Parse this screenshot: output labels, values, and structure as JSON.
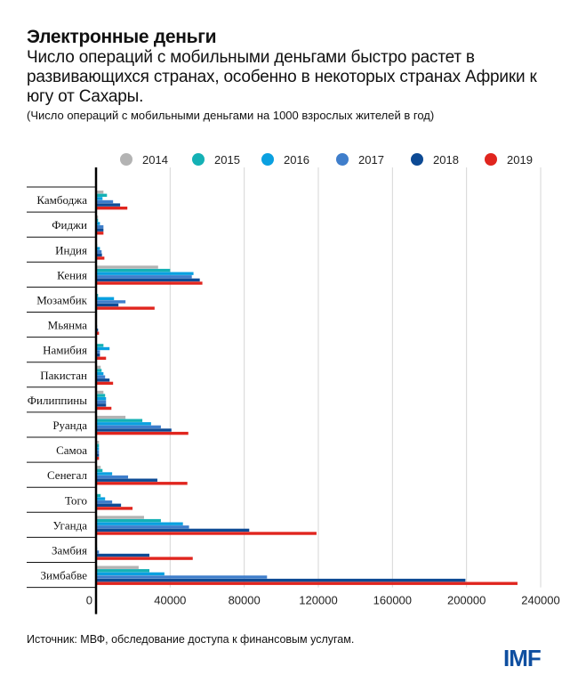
{
  "header": {
    "title": "Электронные деньги",
    "subtitle": "Число операций с мобильными деньгами быстро растет в развивающихся странах, особенно в некоторых странах Африки к югу от Сахары.",
    "note": "(Число операций с мобильными деньгами на 1000 взрослых жителей в год)"
  },
  "footer": {
    "source": "Источник: МВФ, обследование доступа к финансовым услугам.",
    "logo": "IMF"
  },
  "chart_data": {
    "type": "bar",
    "orientation": "horizontal",
    "title": "",
    "xlabel": "",
    "ylabel": "",
    "xlim": [
      0,
      240000
    ],
    "xticks": [
      "0",
      "40000",
      "80000",
      "120000",
      "160000",
      "200000",
      "240000"
    ],
    "grid": true,
    "legend_position": "top",
    "categories": [
      "Камбоджа",
      "Фиджи",
      "Индия",
      "Кения",
      "Мозамбик",
      "Мьянма",
      "Намибия",
      "Пакистан",
      "Филиппины",
      "Руанда",
      "Самоа",
      "Сенегал",
      "Того",
      "Уганда",
      "Замбия",
      "Зимбабве"
    ],
    "series": [
      {
        "name": "2014",
        "color": "#b3b3b3",
        "values": [
          4000,
          1100,
          500,
          33500,
          500,
          0,
          0,
          2500,
          4000,
          15900,
          1600,
          2500,
          0,
          25900,
          0,
          23000
        ]
      },
      {
        "name": "2015",
        "color": "#14b1b5",
        "values": [
          5900,
          1100,
          600,
          40000,
          1100,
          0,
          4000,
          3000,
          4900,
          25000,
          1600,
          3500,
          2500,
          35000,
          500,
          28800
        ]
      },
      {
        "name": "2016",
        "color": "#0aa0e0",
        "values": [
          3500,
          2100,
          2100,
          52600,
          9700,
          300,
          7300,
          4000,
          5400,
          29700,
          1600,
          8700,
          4900,
          46900,
          600,
          36900
        ]
      },
      {
        "name": "2017",
        "color": "#3f7ecb",
        "values": [
          9200,
          4000,
          3000,
          51700,
          15900,
          600,
          2100,
          4900,
          5400,
          35000,
          1600,
          17300,
          8700,
          50200,
          1600,
          92300
        ]
      },
      {
        "name": "2018",
        "color": "#0d4a94",
        "values": [
          13000,
          4000,
          3200,
          56000,
          12100,
          1100,
          2100,
          7300,
          5400,
          40700,
          1600,
          33100,
          13500,
          82700,
          28800,
          199400
        ]
      },
      {
        "name": "2019",
        "color": "#e0251e",
        "values": [
          16900,
          4000,
          4500,
          57400,
          31600,
          1600,
          5400,
          9200,
          8300,
          49800,
          1600,
          49300,
          19700,
          119000,
          52200,
          227500
        ]
      }
    ]
  }
}
